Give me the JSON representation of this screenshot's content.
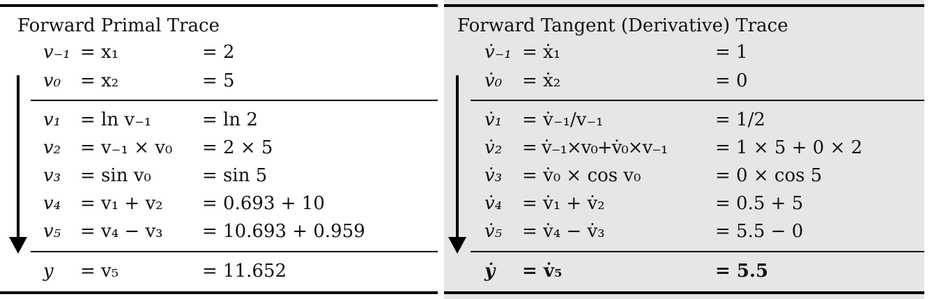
{
  "primal": {
    "title": "Forward Primal Trace",
    "inputs": [
      {
        "lhs": "v₋₁",
        "expr": "= x₁",
        "val": "= 2"
      },
      {
        "lhs": "v₀",
        "expr": "= x₂",
        "val": "= 5"
      }
    ],
    "body": [
      {
        "lhs": "v₁",
        "expr": "= ln v₋₁",
        "val": "= ln 2"
      },
      {
        "lhs": "v₂",
        "expr": "= v₋₁ × v₀",
        "val": "= 2 × 5"
      },
      {
        "lhs": "v₃",
        "expr": "= sin v₀",
        "val": "= sin 5"
      },
      {
        "lhs": "v₄",
        "expr": "= v₁ + v₂",
        "val": "= 0.693 + 10"
      },
      {
        "lhs": "v₅",
        "expr": "= v₄ − v₃",
        "val": "= 10.693 + 0.959"
      }
    ],
    "output": {
      "lhs": "y",
      "expr": "= v₅",
      "val": "= 11.652"
    }
  },
  "tangent": {
    "title": "Forward Tangent (Derivative) Trace",
    "inputs": [
      {
        "lhs": "v̇₋₁",
        "expr": "= ẋ₁",
        "val": "= 1"
      },
      {
        "lhs": "v̇₀",
        "expr": "= ẋ₂",
        "val": "= 0"
      }
    ],
    "body": [
      {
        "lhs": "v̇₁",
        "expr": "= v̇₋₁/v₋₁",
        "val": "= 1/2"
      },
      {
        "lhs": "v̇₂",
        "expr": "= v̇₋₁×v₀+v̇₀×v₋₁",
        "val": "= 1 × 5 + 0 × 2"
      },
      {
        "lhs": "v̇₃",
        "expr": "= v̇₀ × cos v₀",
        "val": "= 0 × cos 5"
      },
      {
        "lhs": "v̇₄",
        "expr": "= v̇₁ + v̇₂",
        "val": "= 0.5 + 5"
      },
      {
        "lhs": "v̇₅",
        "expr": "= v̇₄ − v̇₃",
        "val": "= 5.5 − 0"
      }
    ],
    "output": {
      "lhs": "ẏ",
      "expr": "= v̇₅",
      "val": "= 5.5"
    }
  }
}
